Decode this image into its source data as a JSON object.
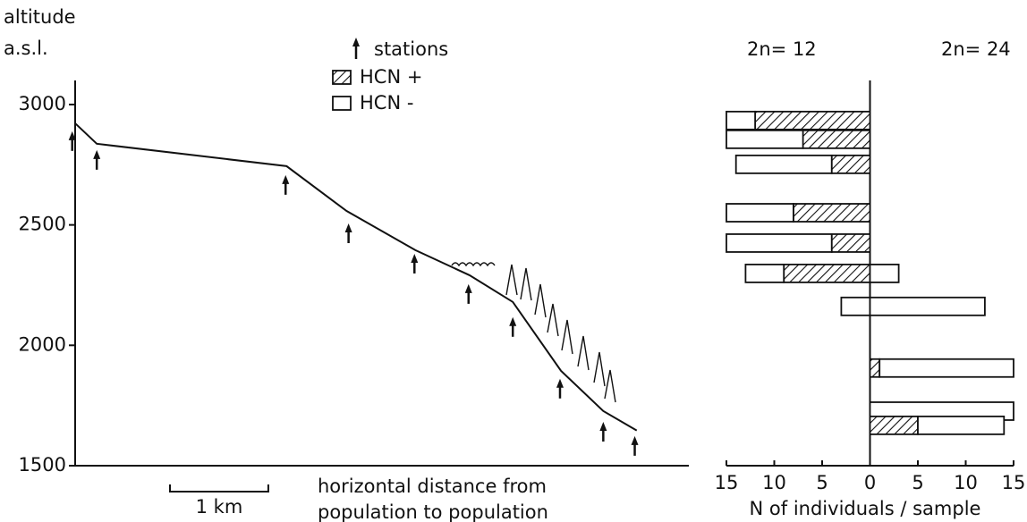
{
  "chart_data": [
    {
      "type": "line",
      "y_label": [
        "altitude",
        "a.s.l."
      ],
      "x_label": [
        "horizontal distance from",
        "population to population"
      ],
      "ylim": [
        1500,
        3100
      ],
      "yticks": [
        1500,
        2000,
        2500,
        3000
      ],
      "xlim": [
        0,
        6.24
      ],
      "scale_bar": {
        "value": 1,
        "label": "1 km"
      },
      "series": [
        {
          "color": "#111",
          "x": [
            0,
            0.22,
            2.15,
            2.76,
            3.46,
            4.01,
            4.45,
            4.94,
            5.37,
            5.71
          ],
          "values": [
            2922,
            2837,
            2744,
            2558,
            2395,
            2291,
            2180,
            1894,
            1727,
            1646
          ]
        },
        {
          "name": "stations",
          "marker": "arrow",
          "color": "#111",
          "x": [
            -0.03,
            0.22,
            2.14,
            2.78,
            3.45,
            4.0,
            4.45,
            4.93,
            5.37,
            5.69
          ],
          "values": [
            2889,
            2811,
            2707,
            2506,
            2380,
            2254,
            2117,
            1861,
            1682,
            1623
          ]
        }
      ]
    },
    {
      "type": "bar",
      "orientation": "diverging",
      "sides": [
        "2n= 12",
        "2n= 24"
      ],
      "x_label": "N of individuals / sample",
      "xlim": [
        -15,
        15
      ],
      "xticks": [
        {
          "value": -15,
          "label": "15"
        },
        {
          "value": -10,
          "label": "10"
        },
        {
          "value": -5,
          "label": "5"
        },
        0,
        5,
        10,
        15
      ],
      "series": [
        {
          "name": "HCN +",
          "pattern": "hatch",
          "left_values": [
            12,
            7,
            4,
            8,
            4,
            9,
            0,
            null,
            null,
            null
          ],
          "right_values": [
            null,
            null,
            null,
            null,
            null,
            0,
            0,
            1,
            0,
            5
          ]
        },
        {
          "name": "HCN -",
          "pattern": "open",
          "left_values": [
            3,
            8,
            10,
            7,
            11,
            4,
            3,
            null,
            null,
            null
          ],
          "right_values": [
            null,
            null,
            null,
            null,
            null,
            3,
            12,
            14,
            15,
            9
          ]
        }
      ]
    }
  ]
}
